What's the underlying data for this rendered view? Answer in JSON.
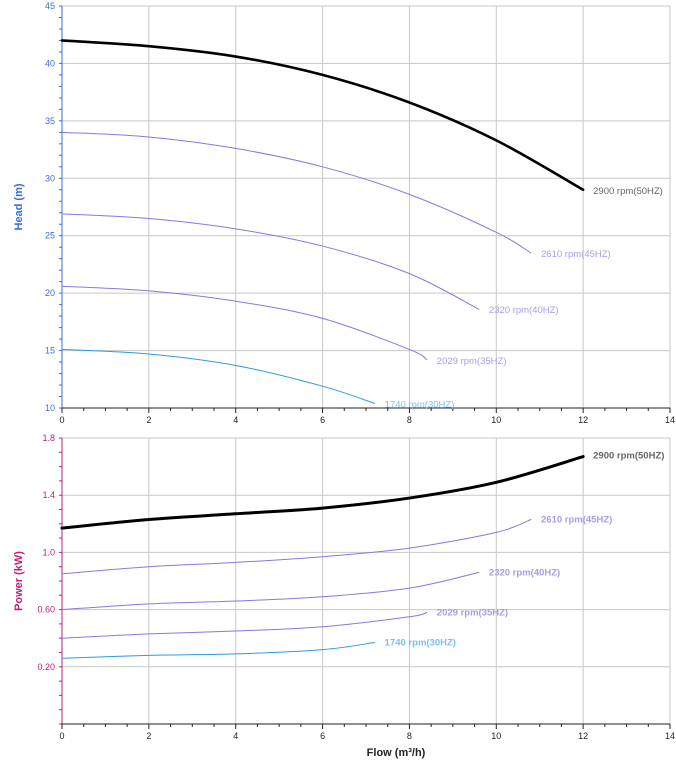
{
  "colors": {
    "grid": "#c8c8c8",
    "head_axis": "#3a6fd8",
    "power_axis": "#c0207a",
    "x_axis": "#222222"
  },
  "chart_data": [
    {
      "type": "line",
      "xlabel": "",
      "ylabel": "Head (m)",
      "xlim": [
        0,
        14
      ],
      "ylim": [
        10,
        45
      ],
      "xticks": [
        "0",
        "2",
        "4",
        "6",
        "8",
        "10",
        "12",
        "14"
      ],
      "yticks": [
        "10",
        "15",
        "20",
        "25",
        "30",
        "35",
        "40",
        "45"
      ],
      "grid": true,
      "series": [
        {
          "name": "2900 rpm(50HZ)",
          "color": "#000000",
          "label_weight": "normal",
          "x": [
            0,
            2,
            4,
            6,
            8,
            10,
            12
          ],
          "values": [
            42.0,
            41.5,
            40.6,
            39.0,
            36.6,
            33.3,
            29.0
          ]
        },
        {
          "name": "2610 rpm(45HZ)",
          "color": "#8878e0",
          "label_weight": "normal",
          "x": [
            0,
            2,
            4,
            6,
            8,
            10,
            10.8
          ],
          "values": [
            34.0,
            33.6,
            32.6,
            31.0,
            28.6,
            25.3,
            23.5
          ]
        },
        {
          "name": "2320 rpm(40HZ)",
          "color": "#8878e0",
          "label_weight": "normal",
          "x": [
            0,
            2,
            4,
            6,
            8,
            9.6
          ],
          "values": [
            26.9,
            26.5,
            25.6,
            24.1,
            21.7,
            18.6
          ]
        },
        {
          "name": "2029 rpm(35HZ)",
          "color": "#8878e0",
          "label_weight": "normal",
          "x": [
            0,
            2,
            4,
            6,
            8,
            8.4
          ],
          "values": [
            20.6,
            20.2,
            19.3,
            17.8,
            15.1,
            14.2
          ]
        },
        {
          "name": "1740 rpm(30HZ)",
          "color": "#2f9ae0",
          "label_weight": "normal",
          "x": [
            0,
            2,
            4,
            6,
            7.2
          ],
          "values": [
            15.1,
            14.7,
            13.7,
            11.9,
            10.4
          ]
        }
      ]
    },
    {
      "type": "line",
      "xlabel": "Flow (m³/h)",
      "ylabel": "Power (kW)",
      "xlim": [
        0,
        14
      ],
      "ylim": [
        -0.2,
        1.8
      ],
      "xticks": [
        "0",
        "2",
        "4",
        "6",
        "8",
        "10",
        "12",
        "14"
      ],
      "yticks": [
        {
          "value": 0.2,
          "label": "0.20"
        },
        {
          "value": 0.6,
          "label": "0.60"
        },
        {
          "value": 1.0,
          "label": "1.0"
        },
        {
          "value": 1.4,
          "label": "1.4"
        },
        {
          "value": 1.8,
          "label": "1.8"
        }
      ],
      "grid": true,
      "series": [
        {
          "name": "2900 rpm(50HZ)",
          "color": "#000000",
          "label_weight": "bold",
          "x": [
            0,
            2,
            4,
            6,
            8,
            10,
            12
          ],
          "values": [
            1.17,
            1.23,
            1.27,
            1.31,
            1.38,
            1.49,
            1.67
          ]
        },
        {
          "name": "2610 rpm(45HZ)",
          "color": "#8878e0",
          "label_weight": "bold",
          "x": [
            0,
            2,
            4,
            6,
            8,
            10,
            10.8
          ],
          "values": [
            0.85,
            0.9,
            0.93,
            0.97,
            1.03,
            1.14,
            1.23
          ]
        },
        {
          "name": "2320 rpm(40HZ)",
          "color": "#8878e0",
          "label_weight": "bold",
          "x": [
            0,
            2,
            4,
            6,
            8,
            9.6
          ],
          "values": [
            0.6,
            0.64,
            0.66,
            0.69,
            0.75,
            0.86
          ]
        },
        {
          "name": "2029 rpm(35HZ)",
          "color": "#8878e0",
          "label_weight": "bold",
          "x": [
            0,
            2,
            4,
            6,
            8,
            8.4
          ],
          "values": [
            0.4,
            0.43,
            0.45,
            0.48,
            0.55,
            0.58
          ]
        },
        {
          "name": "1740 rpm(30HZ)",
          "color": "#2f9ae0",
          "label_weight": "bold",
          "x": [
            0,
            2,
            4,
            6,
            7.2
          ],
          "values": [
            0.26,
            0.28,
            0.29,
            0.32,
            0.37
          ]
        }
      ]
    }
  ]
}
